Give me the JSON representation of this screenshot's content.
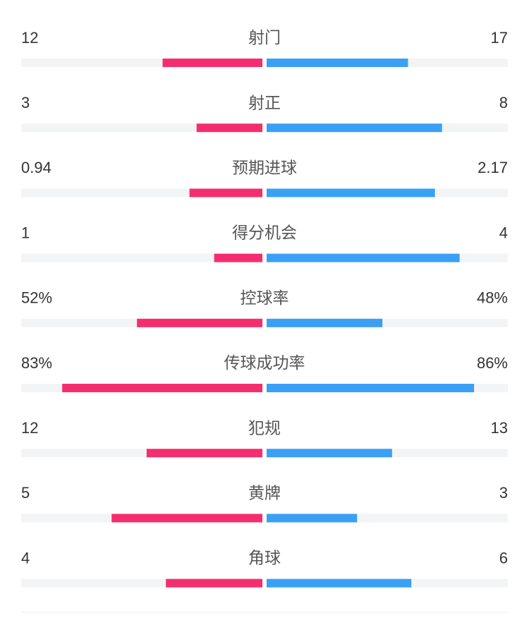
{
  "stats": [
    {
      "label": "射门",
      "values": [
        12,
        17
      ]
    },
    {
      "label": "射正",
      "values": [
        3,
        8
      ]
    },
    {
      "label": "预期进球",
      "values": [
        0.94,
        2.17
      ]
    },
    {
      "label": "得分机会",
      "values": [
        1,
        4
      ]
    },
    {
      "label": "控球率",
      "values": [
        52,
        48
      ],
      "value_labels": [
        "52%",
        "48%"
      ]
    },
    {
      "label": "传球成功率",
      "values": [
        83,
        86
      ],
      "value_labels": [
        "83%",
        "86%"
      ]
    },
    {
      "label": "犯规",
      "values": [
        12,
        13
      ]
    },
    {
      "label": "黄牌",
      "values": [
        5,
        3
      ]
    },
    {
      "label": "角球",
      "values": [
        4,
        6
      ]
    }
  ],
  "colors": [
    "#f42e6e",
    "#3aa0f5"
  ]
}
